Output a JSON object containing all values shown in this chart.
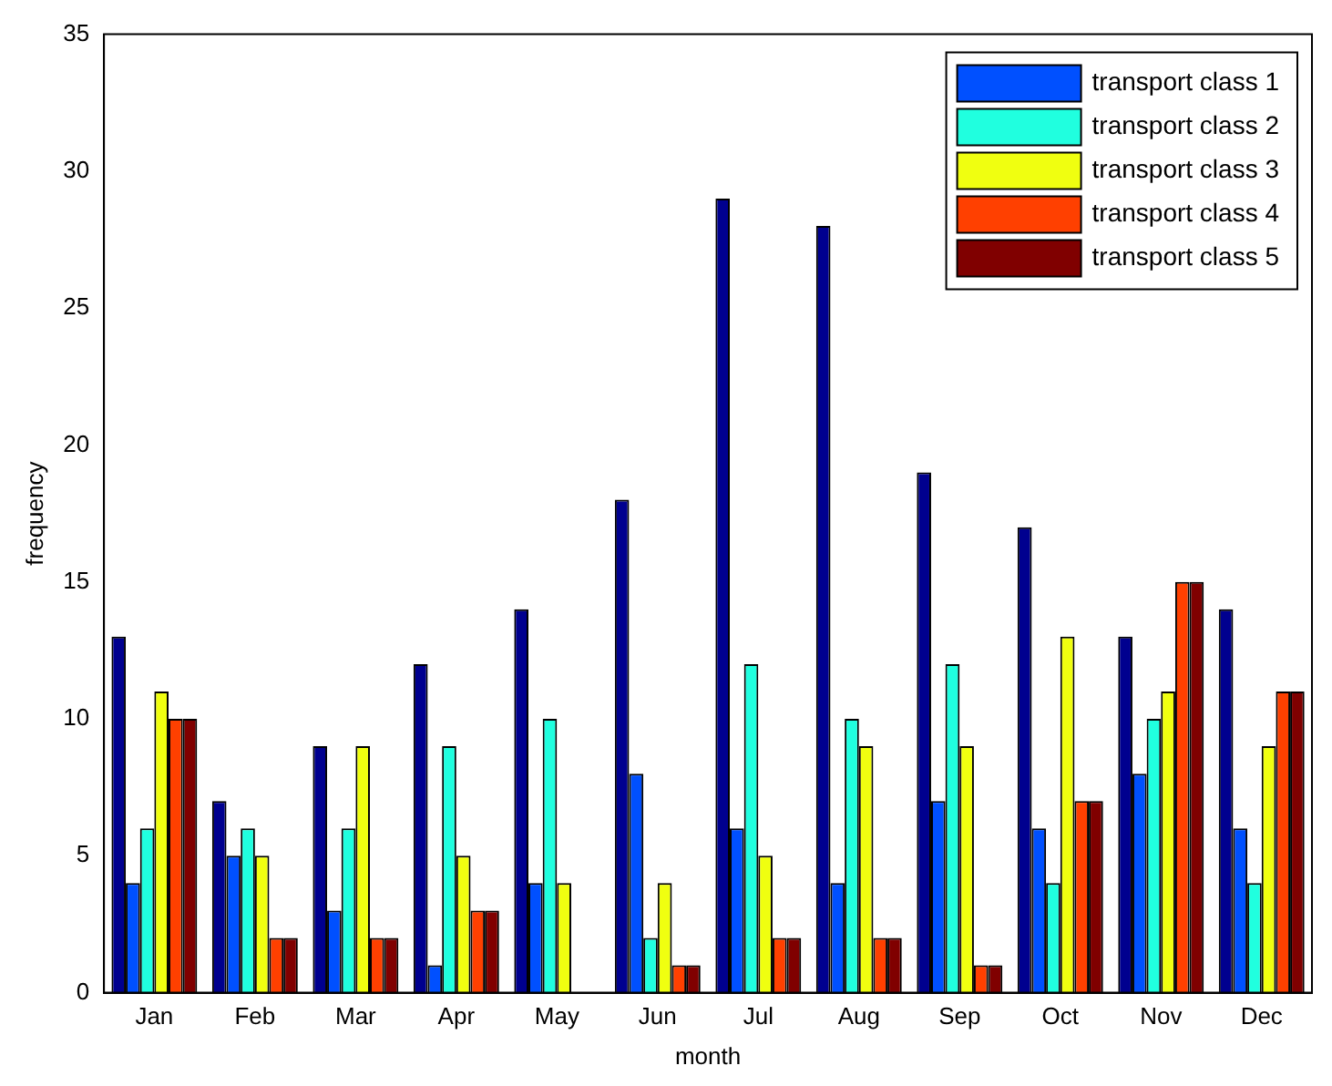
{
  "chart_data": {
    "type": "bar",
    "xlabel": "month",
    "ylabel": "frequency",
    "categories": [
      "Jan",
      "Feb",
      "Mar",
      "Apr",
      "May",
      "Jun",
      "Jul",
      "Aug",
      "Sep",
      "Oct",
      "Nov",
      "Dec"
    ],
    "series": [
      {
        "color": "#00008f",
        "values": [
          13,
          7,
          9,
          12,
          14,
          18,
          29,
          28,
          19,
          17,
          13,
          14
        ]
      },
      {
        "name": "transport class 1",
        "color": "#0050ff",
        "values": [
          4,
          5,
          3,
          1,
          4,
          8,
          6,
          4,
          7,
          6,
          8,
          6
        ]
      },
      {
        "name": "transport class 2",
        "color": "#20ffdf",
        "values": [
          6,
          6,
          6,
          9,
          10,
          2,
          12,
          10,
          12,
          4,
          10,
          4
        ]
      },
      {
        "name": "transport class 3",
        "color": "#f0ff10",
        "values": [
          11,
          5,
          9,
          5,
          4,
          4,
          5,
          9,
          9,
          13,
          11,
          9
        ]
      },
      {
        "name": "transport class 4",
        "color": "#ff4000",
        "values": [
          10,
          2,
          2,
          3,
          0,
          1,
          2,
          2,
          1,
          7,
          15,
          11
        ]
      },
      {
        "name": "transport class 5",
        "color": "#800000",
        "values": [
          10,
          2,
          2,
          3,
          0,
          1,
          2,
          2,
          1,
          7,
          15,
          11
        ]
      }
    ],
    "ylim": [
      0,
      35
    ],
    "yticks": [
      0,
      5,
      10,
      15,
      20,
      25,
      30,
      35
    ],
    "grid": false,
    "legend": "top right"
  }
}
